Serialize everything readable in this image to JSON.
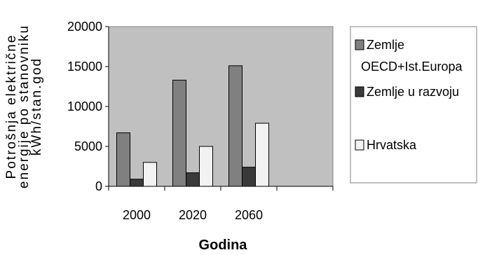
{
  "chart_data": {
    "type": "bar",
    "categories": [
      "2000",
      "2020",
      "2060",
      ""
    ],
    "series": [
      {
        "name": "Zemlje OECD+Ist.Europa",
        "label_lines": [
          "Zemlje",
          "OECD+Ist.Europa"
        ],
        "values": [
          6700,
          13300,
          15100,
          null
        ],
        "color": "#808080"
      },
      {
        "name": "Zemlje u razvoju",
        "label_lines": [
          "Zemlje u razvoju"
        ],
        "values": [
          900,
          1700,
          2400,
          null
        ],
        "color": "#3a3a3a"
      },
      {
        "name": "Hrvatska",
        "label_lines": [
          "Hrvatska"
        ],
        "values": [
          3000,
          5000,
          7900,
          null
        ],
        "color": "#f2f2f2"
      }
    ],
    "ylim": [
      0,
      20000
    ],
    "yticks": [
      0,
      5000,
      10000,
      15000,
      20000
    ],
    "ylabel_lines": [
      "Potrošnja električne",
      "energije po stanovniku",
      "kWh/stan.god"
    ],
    "xlabel": "Godina",
    "plot_background": "#c0c0c0",
    "grid": false,
    "legend_position": "right"
  }
}
